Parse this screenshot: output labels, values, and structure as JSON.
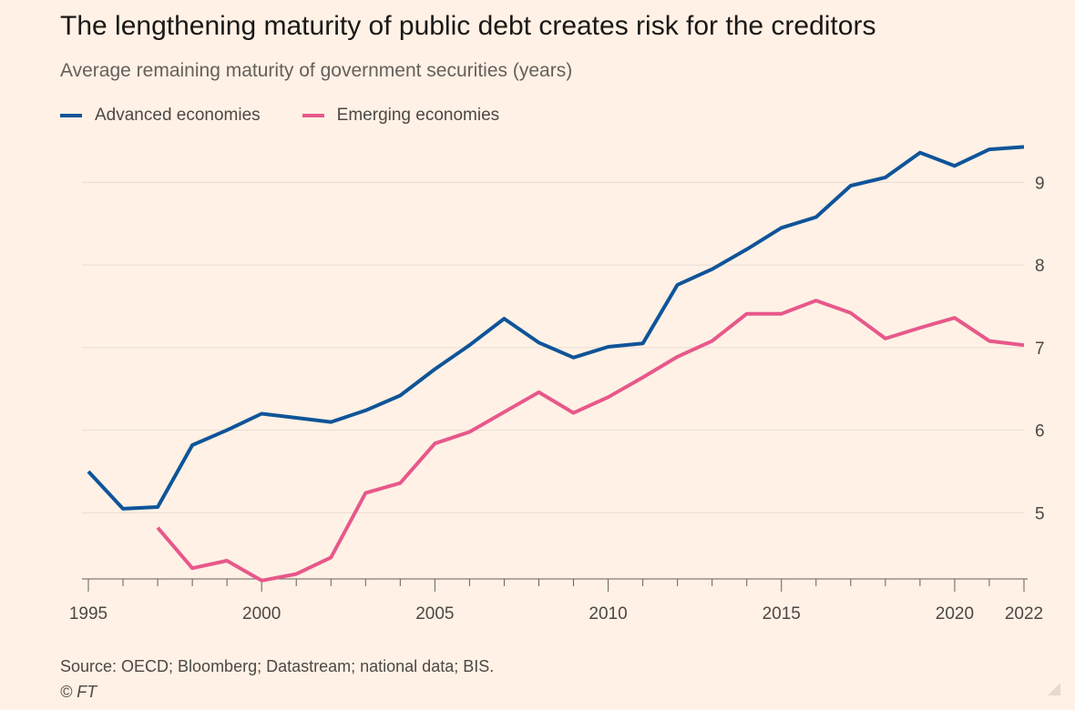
{
  "title": "The lengthening maturity of public debt creates risk for the creditors",
  "subtitle": "Average remaining maturity of government securities (years)",
  "source": "Source: OECD; Bloomberg; Datastream; national data; BIS.",
  "copyright": "© FT",
  "colors": {
    "background": "#fff1e5",
    "advanced": "#0f5499",
    "emerging": "#e7588b",
    "grid": "#e9ddd2",
    "axis": "#66605c"
  },
  "chart_data": {
    "type": "line",
    "title": "The lengthening maturity of public debt creates risk for the creditors",
    "subtitle": "Average remaining maturity of government securities (years)",
    "xlabel": "",
    "ylabel": "",
    "xlim": [
      1995,
      2022
    ],
    "ylim": [
      4.2,
      9.5
    ],
    "x_ticks": [
      "1995",
      "2000",
      "2005",
      "2010",
      "2015",
      "2020",
      "2022"
    ],
    "x_tick_values": [
      1995,
      2000,
      2005,
      2010,
      2015,
      2020,
      2022
    ],
    "y_ticks": [
      "5",
      "6",
      "7",
      "8",
      "9"
    ],
    "y_tick_values": [
      5,
      6,
      7,
      8,
      9
    ],
    "y_axis_side": "right",
    "grid": true,
    "legend_position": "top-left",
    "series": [
      {
        "name": "Advanced economies",
        "color": "#0f5499",
        "x": [
          1995,
          1996,
          1997,
          1998,
          1999,
          2000,
          2001,
          2002,
          2003,
          2004,
          2005,
          2006,
          2007,
          2008,
          2009,
          2010,
          2011,
          2012,
          2013,
          2014,
          2015,
          2016,
          2017,
          2018,
          2019,
          2020,
          2021,
          2022
        ],
        "values": [
          5.5,
          5.05,
          5.07,
          5.82,
          6.0,
          6.2,
          6.15,
          6.1,
          6.24,
          6.42,
          6.74,
          7.03,
          7.35,
          7.06,
          6.88,
          7.01,
          7.05,
          7.76,
          7.95,
          8.19,
          8.45,
          8.58,
          8.96,
          9.06,
          9.36,
          9.2,
          9.4,
          9.43
        ]
      },
      {
        "name": "Emerging economies",
        "color": "#e7588b",
        "x": [
          1997,
          1998,
          1999,
          2000,
          2001,
          2002,
          2003,
          2004,
          2005,
          2006,
          2007,
          2008,
          2009,
          2010,
          2011,
          2012,
          2013,
          2014,
          2015,
          2016,
          2017,
          2018,
          2019,
          2020,
          2021,
          2022
        ],
        "values": [
          4.82,
          4.33,
          4.42,
          4.18,
          4.26,
          4.46,
          5.24,
          5.36,
          5.84,
          5.98,
          6.22,
          6.46,
          6.21,
          6.4,
          6.64,
          6.89,
          7.08,
          7.41,
          7.41,
          7.57,
          7.42,
          7.11,
          7.24,
          7.36,
          7.08,
          7.03
        ]
      }
    ]
  }
}
